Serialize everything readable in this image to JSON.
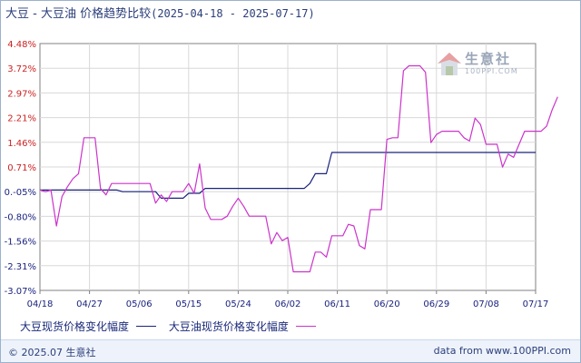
{
  "title": {
    "main": "大豆 - 大豆油 价格趋势比较",
    "range": "(2025-04-18 - 2025-07-17)"
  },
  "watermark": {
    "name": "生意社",
    "url": "100PPI.COM",
    "icon": "house-logo-icon"
  },
  "legend": {
    "items": [
      {
        "label": "大豆现货价格变化幅度",
        "color": "#1a237e"
      },
      {
        "label": "大豆油现货价格变化幅度",
        "color": "#cc33cc"
      }
    ]
  },
  "footer": {
    "left": "© 2025.07 生意社",
    "right": "data from www.100PPI.com"
  },
  "colors": {
    "positive_tick": "#cc2222",
    "negative_tick": "#1a237e",
    "grid": "#d8d8d8",
    "axis": "#808080"
  },
  "chart_data": {
    "type": "line",
    "x_ticks": [
      "04/18",
      "04/27",
      "05/06",
      "05/15",
      "05/24",
      "06/02",
      "06/11",
      "06/20",
      "06/29",
      "07/08",
      "07/17"
    ],
    "y_ticks": [
      "4.48%",
      "3.72%",
      "2.97%",
      "2.21%",
      "1.46%",
      "0.71%",
      "0.-05%",
      "-0.80%",
      "-1.56%",
      "-2.31%",
      "-3.07%"
    ],
    "ylim": [
      -3.07,
      4.48
    ],
    "x_range": [
      0,
      90
    ],
    "grid": true,
    "legend_position": "bottom",
    "series": [
      {
        "name": "大豆现货价格变化幅度",
        "color": "#1a237e",
        "points": [
          [
            0,
            0
          ],
          [
            10,
            0
          ],
          [
            14,
            0
          ],
          [
            15,
            -0.05
          ],
          [
            21,
            -0.05
          ],
          [
            22,
            -0.25
          ],
          [
            26,
            -0.25
          ],
          [
            27,
            -0.1
          ],
          [
            29,
            -0.1
          ],
          [
            30,
            0.05
          ],
          [
            48,
            0.05
          ],
          [
            49,
            0.2
          ],
          [
            50,
            0.5
          ],
          [
            52,
            0.5
          ],
          [
            53,
            1.15
          ],
          [
            90,
            1.15
          ]
        ]
      },
      {
        "name": "大豆油现货价格变化幅度",
        "color": "#cc33cc",
        "points": [
          [
            0,
            0
          ],
          [
            1,
            -0.05
          ],
          [
            2,
            0
          ],
          [
            3,
            -1.1
          ],
          [
            4,
            -0.2
          ],
          [
            5,
            0.1
          ],
          [
            6,
            0.35
          ],
          [
            7,
            0.5
          ],
          [
            8,
            1.6
          ],
          [
            9,
            1.6
          ],
          [
            10,
            1.6
          ],
          [
            11,
            0.05
          ],
          [
            12,
            -0.15
          ],
          [
            13,
            0.2
          ],
          [
            14,
            0.2
          ],
          [
            19,
            0.2
          ],
          [
            20,
            0.2
          ],
          [
            21,
            -0.4
          ],
          [
            22,
            -0.15
          ],
          [
            23,
            -0.35
          ],
          [
            24,
            -0.05
          ],
          [
            25,
            -0.05
          ],
          [
            26,
            -0.05
          ],
          [
            27,
            0.2
          ],
          [
            28,
            -0.1
          ],
          [
            29,
            0.8
          ],
          [
            30,
            -0.55
          ],
          [
            31,
            -0.9
          ],
          [
            32,
            -0.9
          ],
          [
            33,
            -0.9
          ],
          [
            34,
            -0.8
          ],
          [
            35,
            -0.5
          ],
          [
            36,
            -0.25
          ],
          [
            37,
            -0.5
          ],
          [
            38,
            -0.8
          ],
          [
            39,
            -0.8
          ],
          [
            40,
            -0.8
          ],
          [
            41,
            -0.8
          ],
          [
            42,
            -1.65
          ],
          [
            43,
            -1.3
          ],
          [
            44,
            -1.55
          ],
          [
            45,
            -1.45
          ],
          [
            46,
            -2.5
          ],
          [
            47,
            -2.5
          ],
          [
            48,
            -2.5
          ],
          [
            49,
            -2.5
          ],
          [
            50,
            -1.9
          ],
          [
            51,
            -1.9
          ],
          [
            52,
            -2.05
          ],
          [
            53,
            -1.4
          ],
          [
            54,
            -1.4
          ],
          [
            55,
            -1.4
          ],
          [
            56,
            -1.05
          ],
          [
            57,
            -1.1
          ],
          [
            58,
            -1.7
          ],
          [
            59,
            -1.8
          ],
          [
            60,
            -0.6
          ],
          [
            61,
            -0.6
          ],
          [
            62,
            -0.6
          ],
          [
            63,
            1.55
          ],
          [
            64,
            1.6
          ],
          [
            65,
            1.6
          ],
          [
            66,
            3.65
          ],
          [
            67,
            3.8
          ],
          [
            68,
            3.8
          ],
          [
            69,
            3.8
          ],
          [
            70,
            3.6
          ],
          [
            71,
            1.45
          ],
          [
            72,
            1.7
          ],
          [
            73,
            1.8
          ],
          [
            75,
            1.8
          ],
          [
            76,
            1.8
          ],
          [
            77,
            1.6
          ],
          [
            78,
            1.5
          ],
          [
            79,
            2.2
          ],
          [
            80,
            2.0
          ],
          [
            81,
            1.4
          ],
          [
            82,
            1.4
          ],
          [
            83,
            1.4
          ],
          [
            84,
            0.7
          ],
          [
            85,
            1.1
          ],
          [
            86,
            1.0
          ],
          [
            87,
            1.4
          ],
          [
            88,
            1.8
          ],
          [
            89,
            1.8
          ],
          [
            90,
            1.8
          ],
          [
            91,
            1.8
          ],
          [
            92,
            1.95
          ],
          [
            93,
            2.45
          ],
          [
            94,
            2.85
          ]
        ]
      }
    ]
  }
}
